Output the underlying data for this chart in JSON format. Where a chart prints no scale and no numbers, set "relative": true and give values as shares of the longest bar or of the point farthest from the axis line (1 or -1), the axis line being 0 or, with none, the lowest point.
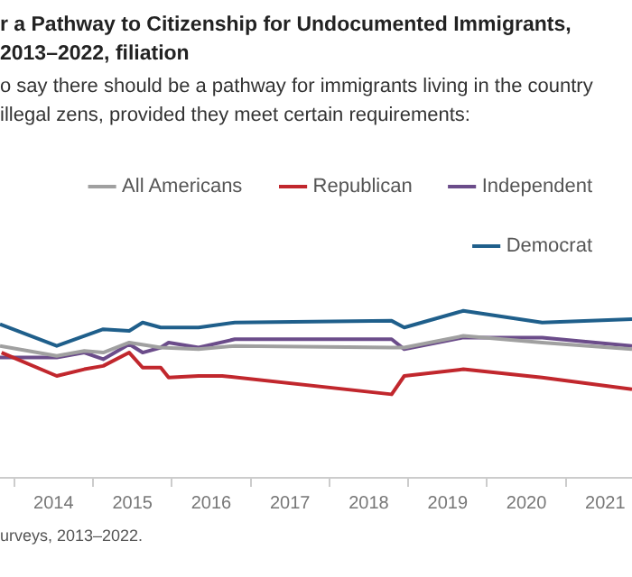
{
  "chart_data": {
    "type": "line",
    "title": "r a Pathway to Citizenship for Undocumented Immigrants, 2013–2022, filiation",
    "subtitle": "o say there should be a pathway for immigrants living in the country illegal zens, provided they meet certain requirements:",
    "annotations": [
      "urveys, 2013–2022."
    ],
    "relative": true,
    "legend": "top",
    "grid": false,
    "marker": "none",
    "line_style": "solid",
    "xlim": [
      2013.82,
      2021.84
    ],
    "xticks": [
      {
        "value": 2014,
        "label": null
      },
      {
        "value": 2014.5,
        "label": "2014"
      },
      {
        "value": 2015,
        "label": null
      },
      {
        "value": 2015.5,
        "label": "2015"
      },
      {
        "value": 2016,
        "label": null
      },
      {
        "value": 2016.5,
        "label": "2016"
      },
      {
        "value": 2017,
        "label": null
      },
      {
        "value": 2017.5,
        "label": "2017"
      },
      {
        "value": 2018,
        "label": null
      },
      {
        "value": 2018.5,
        "label": "2018"
      },
      {
        "value": 2019,
        "label": null
      },
      {
        "value": 2019.5,
        "label": "2019"
      },
      {
        "value": 2020,
        "label": null
      },
      {
        "value": 2020.5,
        "label": "2020"
      },
      {
        "value": 2021,
        "label": null
      },
      {
        "value": 2021.5,
        "label": "2021"
      }
    ],
    "series": [
      {
        "name": "All Americans",
        "color": "#a0a0a0",
        "x": [
          2013.82,
          2014.54,
          2014.89,
          2015.13,
          2015.46,
          2015.86,
          2016.34,
          2016.8,
          2018.79,
          2018.95,
          2019.7,
          2020.7,
          2021.84
        ],
        "values": [
          0.79,
          0.73,
          0.76,
          0.75,
          0.81,
          0.78,
          0.77,
          0.79,
          0.78,
          0.78,
          0.85,
          0.81,
          0.77
        ]
      },
      {
        "name": "Republican",
        "color": "#c1272d",
        "x": [
          2013.84,
          2014.54,
          2014.89,
          2015.13,
          2015.46,
          2015.63,
          2015.86,
          2015.96,
          2016.34,
          2016.64,
          2018.79,
          2018.95,
          2019.7,
          2020.7,
          2021.84
        ],
        "values": [
          0.75,
          0.61,
          0.65,
          0.67,
          0.75,
          0.66,
          0.66,
          0.6,
          0.61,
          0.61,
          0.5,
          0.61,
          0.65,
          0.6,
          0.53
        ]
      },
      {
        "name": "Independent",
        "color": "#6b4c8a",
        "x": [
          2013.82,
          2014.54,
          2014.89,
          2015.13,
          2015.46,
          2015.63,
          2015.86,
          2015.96,
          2016.34,
          2016.8,
          2018.79,
          2018.95,
          2019.7,
          2020.7,
          2021.84
        ],
        "values": [
          0.72,
          0.72,
          0.75,
          0.71,
          0.8,
          0.75,
          0.78,
          0.81,
          0.78,
          0.83,
          0.83,
          0.77,
          0.84,
          0.84,
          0.79
        ]
      },
      {
        "name": "Democrat",
        "color": "#1f5f8b",
        "x": [
          2013.82,
          2014.54,
          2014.89,
          2015.13,
          2015.46,
          2015.63,
          2015.86,
          2016.34,
          2016.8,
          2018.79,
          2018.95,
          2019.7,
          2020.7,
          2021.84
        ],
        "values": [
          0.92,
          0.79,
          0.85,
          0.89,
          0.88,
          0.93,
          0.9,
          0.9,
          0.93,
          0.94,
          0.9,
          1.0,
          0.93,
          0.95
        ]
      }
    ]
  }
}
